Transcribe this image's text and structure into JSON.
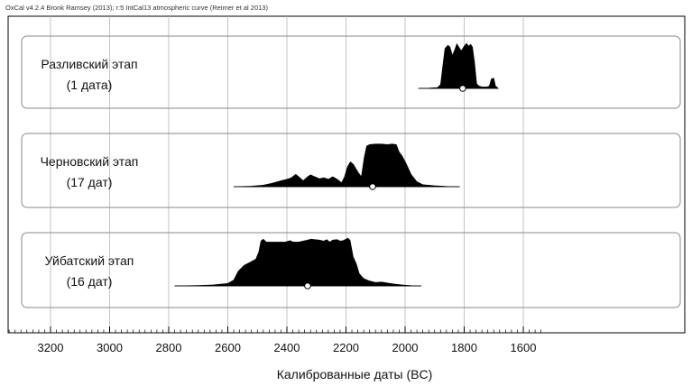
{
  "header": "OxCal v4.2.4 Bronk Ramsey (2013); r:5 IntCal13 atmospheric curve (Reimer et al 2013)",
  "chart_data": {
    "type": "area",
    "xlabel": "Калиброванные даты (BC)",
    "x_axis": {
      "reversed": true,
      "ticks": [
        3200,
        3000,
        2800,
        2600,
        2400,
        2200,
        2000,
        1800,
        1600
      ],
      "tick_labels": [
        "3200",
        "3000",
        "2800",
        "2600",
        "2400",
        "2200",
        "2000",
        "1800",
        "1600"
      ],
      "minor_step": 20
    },
    "grid": true,
    "groups": [
      {
        "label_line1": "Разливский этап",
        "label_line2": "(1 дата)",
        "range": [
          1955,
          1685
        ],
        "median": 1805,
        "distribution": [
          [
            1955,
            0
          ],
          [
            1920,
            0.005
          ],
          [
            1890,
            0.02
          ],
          [
            1880,
            0.08
          ],
          [
            1873,
            0.45
          ],
          [
            1865,
            0.85
          ],
          [
            1855,
            0.92
          ],
          [
            1848,
            0.88
          ],
          [
            1840,
            0.7
          ],
          [
            1832,
            0.82
          ],
          [
            1825,
            0.95
          ],
          [
            1818,
            0.88
          ],
          [
            1810,
            0.8
          ],
          [
            1800,
            0.9
          ],
          [
            1792,
            0.96
          ],
          [
            1785,
            0.9
          ],
          [
            1778,
            0.94
          ],
          [
            1772,
            0.88
          ],
          [
            1765,
            0.55
          ],
          [
            1758,
            0.1
          ],
          [
            1750,
            0.05
          ],
          [
            1740,
            0.03
          ],
          [
            1730,
            0.03
          ],
          [
            1722,
            0.03
          ],
          [
            1715,
            0.05
          ],
          [
            1708,
            0.2
          ],
          [
            1700,
            0.22
          ],
          [
            1694,
            0.05
          ],
          [
            1685,
            0
          ]
        ]
      },
      {
        "label_line1": "Черновский этап",
        "label_line2": "(17 дат)",
        "range": [
          2580,
          1815
        ],
        "median": 2110,
        "distribution": [
          [
            2580,
            0
          ],
          [
            2520,
            0.01
          ],
          [
            2480,
            0.03
          ],
          [
            2450,
            0.07
          ],
          [
            2420,
            0.12
          ],
          [
            2400,
            0.15
          ],
          [
            2385,
            0.18
          ],
          [
            2370,
            0.25
          ],
          [
            2360,
            0.2
          ],
          [
            2345,
            0.12
          ],
          [
            2330,
            0.2
          ],
          [
            2320,
            0.24
          ],
          [
            2305,
            0.2
          ],
          [
            2290,
            0.16
          ],
          [
            2275,
            0.18
          ],
          [
            2260,
            0.15
          ],
          [
            2245,
            0.2
          ],
          [
            2230,
            0.15
          ],
          [
            2215,
            0.08
          ],
          [
            2205,
            0.2
          ],
          [
            2195,
            0.4
          ],
          [
            2185,
            0.5
          ],
          [
            2175,
            0.45
          ],
          [
            2160,
            0.3
          ],
          [
            2148,
            0.2
          ],
          [
            2138,
            0.6
          ],
          [
            2130,
            0.82
          ],
          [
            2120,
            0.85
          ],
          [
            2100,
            0.86
          ],
          [
            2080,
            0.86
          ],
          [
            2060,
            0.85
          ],
          [
            2045,
            0.86
          ],
          [
            2030,
            0.85
          ],
          [
            2020,
            0.7
          ],
          [
            2010,
            0.62
          ],
          [
            1995,
            0.45
          ],
          [
            1980,
            0.25
          ],
          [
            1960,
            0.1
          ],
          [
            1940,
            0.04
          ],
          [
            1900,
            0.02
          ],
          [
            1860,
            0.005
          ],
          [
            1815,
            0
          ]
        ]
      },
      {
        "label_line1": "Уйбатский этап",
        "label_line2": "(16 дат)",
        "range": [
          2780,
          1945
        ],
        "median": 2330,
        "distribution": [
          [
            2780,
            0
          ],
          [
            2700,
            0.01
          ],
          [
            2650,
            0.02
          ],
          [
            2600,
            0.05
          ],
          [
            2580,
            0.12
          ],
          [
            2565,
            0.3
          ],
          [
            2545,
            0.42
          ],
          [
            2520,
            0.5
          ],
          [
            2505,
            0.55
          ],
          [
            2495,
            0.7
          ],
          [
            2488,
            0.92
          ],
          [
            2480,
            0.96
          ],
          [
            2470,
            0.9
          ],
          [
            2455,
            0.9
          ],
          [
            2430,
            0.9
          ],
          [
            2405,
            0.9
          ],
          [
            2390,
            0.93
          ],
          [
            2378,
            0.9
          ],
          [
            2360,
            0.9
          ],
          [
            2345,
            0.92
          ],
          [
            2330,
            0.94
          ],
          [
            2318,
            0.96
          ],
          [
            2305,
            0.95
          ],
          [
            2290,
            0.94
          ],
          [
            2275,
            0.92
          ],
          [
            2265,
            0.95
          ],
          [
            2255,
            0.9
          ],
          [
            2245,
            0.94
          ],
          [
            2230,
            0.95
          ],
          [
            2220,
            0.92
          ],
          [
            2210,
            0.93
          ],
          [
            2200,
            0.96
          ],
          [
            2193,
            0.98
          ],
          [
            2186,
            0.93
          ],
          [
            2176,
            0.6
          ],
          [
            2165,
            0.45
          ],
          [
            2155,
            0.25
          ],
          [
            2140,
            0.15
          ],
          [
            2120,
            0.1
          ],
          [
            2100,
            0.07
          ],
          [
            2080,
            0.08
          ],
          [
            2060,
            0.06
          ],
          [
            2040,
            0.04
          ],
          [
            2010,
            0.02
          ],
          [
            1980,
            0.005
          ],
          [
            1945,
            0
          ]
        ]
      }
    ]
  }
}
